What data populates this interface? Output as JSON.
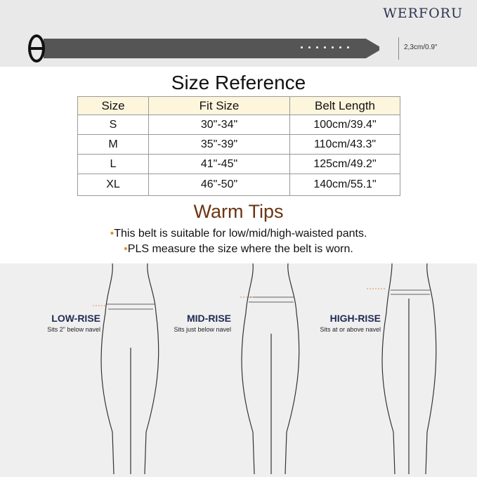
{
  "brand": "WERFORU",
  "belt_width": "2,3cm/0.9\"",
  "title": "Size Reference",
  "table": {
    "headers": [
      "Size",
      "Fit Size",
      "Belt Length"
    ],
    "rows": [
      [
        "S",
        "30\"-34\"",
        "100cm/39.4\""
      ],
      [
        "M",
        "35\"-39\"",
        "110cm/43.3\""
      ],
      [
        "L",
        "41\"-45\"",
        "125cm/49.2\""
      ],
      [
        "XL",
        "46\"-50\"",
        "140cm/55.1\""
      ]
    ]
  },
  "tips_title": "Warm Tips",
  "tips": [
    "This belt is suitable for low/mid/high-waisted pants.",
    "PLS measure the size where the belt is worn."
  ],
  "rises": [
    {
      "label": "LOW-RISE",
      "desc": "Sits 2\" below navel"
    },
    {
      "label": "MID-RISE",
      "desc": "Sits just below navel"
    },
    {
      "label": "HIGH-RISE",
      "desc": "Sits at or above navel"
    }
  ],
  "colors": {
    "tips_title": "#6b3512",
    "bullet": "#e8912b",
    "header_bg": "#fdf6dd",
    "rise_label": "#1f2a52"
  }
}
